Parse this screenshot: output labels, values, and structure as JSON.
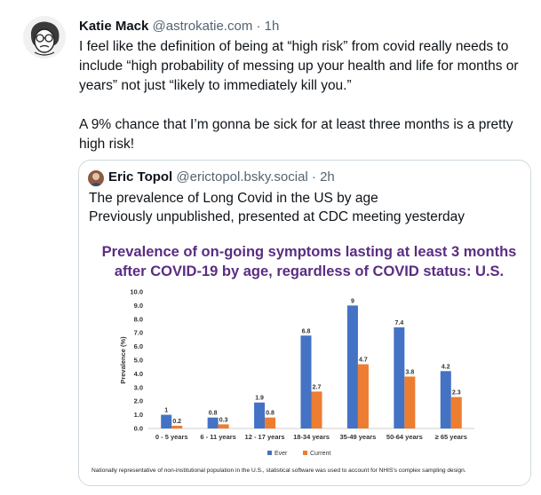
{
  "tweet": {
    "author_name": "Katie Mack",
    "author_handle": "@astrokatie.com",
    "separator": "·",
    "time": "1h",
    "paragraph1": "I feel like the definition of being at “high risk” from covid really needs to include “high probability of messing up your health and life for months or years” not just “likely to immediately kill you.”",
    "paragraph2": "A 9% chance that I’m gonna be sick for at least three months is a pretty high risk!"
  },
  "quote": {
    "author_name": "Eric Topol",
    "author_handle": "@erictopol.bsky.social",
    "separator": "·",
    "time": "2h",
    "line1": "The prevalence of Long Covid in the US by age",
    "line2": "Previously unpublished, presented at CDC meeting yesterday"
  },
  "chart_data": {
    "type": "bar",
    "title": "Prevalence of on-going symptoms lasting at least 3 months after COVID-19 by age, regardless of COVID status: U.S.",
    "ylabel": "Prevalence (%)",
    "xlabel": "",
    "ylim": [
      0,
      10
    ],
    "yticks": [
      "0.0",
      "1.0",
      "2.0",
      "3.0",
      "4.0",
      "5.0",
      "6.0",
      "7.0",
      "8.0",
      "9.0",
      "10.0"
    ],
    "categories": [
      "0 - 5 years",
      "6 - 11 years",
      "12 - 17 years",
      "18-34 years",
      "35-49 years",
      "50-64 years",
      "≥ 65 years"
    ],
    "series": [
      {
        "name": "Ever",
        "color": "#4472c4",
        "values": [
          1,
          0.8,
          1.9,
          6.8,
          9,
          7.4,
          4.2
        ],
        "labels": [
          "1",
          "0.8",
          "1.9",
          "6.8",
          "9",
          "7.4",
          "4.2"
        ]
      },
      {
        "name": "Current",
        "color": "#ed7d31",
        "values": [
          0.2,
          0.3,
          0.8,
          2.7,
          4.7,
          3.8,
          2.3
        ],
        "labels": [
          "0.2",
          "0.3",
          "0.8",
          "2.7",
          "4.7",
          "3.8",
          "2.3"
        ]
      }
    ],
    "legend_position": "bottom",
    "grid": false,
    "note": "Nationally representative of non-institutional population in the U.S., statistical software was used to account for NHIS's complex sampling design."
  }
}
